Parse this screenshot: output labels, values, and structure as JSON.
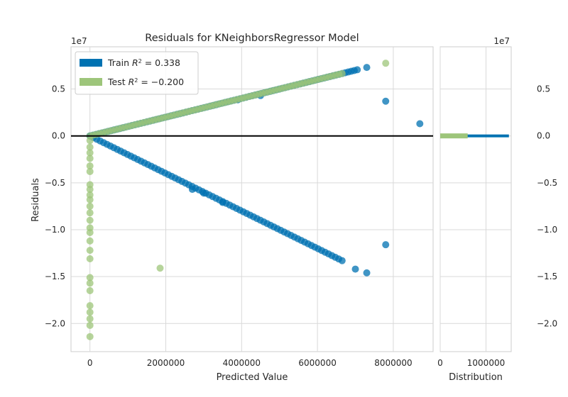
{
  "chart_data": {
    "type": "scatter",
    "title": "Residuals for KNeighborsRegressor Model",
    "xlabel": "Predicted Value",
    "ylabel": "Residuals",
    "x_ticks": [
      0,
      2000000,
      4000000,
      6000000,
      8000000
    ],
    "x_tick_labels": [
      "0",
      "2000000",
      "4000000",
      "6000000",
      "8000000"
    ],
    "y_ticks": [
      5000000,
      0,
      -5000000,
      -10000000,
      -15000000,
      -20000000
    ],
    "y_tick_labels": [
      "0.5",
      "0.0",
      "−0.5",
      "−1.0",
      "−1.5",
      "−2.0"
    ],
    "y_offset_label": "1e7",
    "xlim": [
      -500000,
      9050000
    ],
    "ylim": [
      -23000000,
      9500000
    ],
    "grid": true,
    "legend_position": "top-left",
    "zero_line": true,
    "series": [
      {
        "name": "Train R^2 = 0.338",
        "legend_prefix": "Train ",
        "legend_value": " = 0.338",
        "color": "#0072b2",
        "segments": [
          {
            "x_start": 0,
            "x_end": 7050000,
            "slope": 1.0,
            "count": 90
          },
          {
            "x_start": 0,
            "x_end": 6650000,
            "slope": -2.0,
            "count": 75
          }
        ],
        "points": [
          [
            3900000,
            3850000
          ],
          [
            4500000,
            4300000
          ],
          [
            7300000,
            7300000
          ],
          [
            7800000,
            3700000
          ],
          [
            8700000,
            1300000
          ],
          [
            3500000,
            -7100000
          ],
          [
            7000000,
            -14200000
          ],
          [
            7300000,
            -14600000
          ],
          [
            7800000,
            -11600000
          ],
          [
            3000000,
            -6100000
          ],
          [
            2700000,
            -5700000
          ]
        ]
      },
      {
        "name": "Test R^2 = −0.200",
        "legend_prefix": "Test ",
        "legend_value": " = −0.200",
        "color": "#9dc57a",
        "segments": [
          {
            "x_start": 0,
            "x_end": 6650000,
            "slope": 1.0,
            "count": 80
          }
        ],
        "points": [
          [
            0,
            -500000
          ],
          [
            0,
            -1200000
          ],
          [
            0,
            -1800000
          ],
          [
            0,
            -2400000
          ],
          [
            0,
            -3200000
          ],
          [
            0,
            -3800000
          ],
          [
            0,
            -5200000
          ],
          [
            0,
            -5700000
          ],
          [
            0,
            -6300000
          ],
          [
            0,
            -6800000
          ],
          [
            0,
            -7500000
          ],
          [
            0,
            -8200000
          ],
          [
            0,
            -9000000
          ],
          [
            0,
            -9800000
          ],
          [
            0,
            -10300000
          ],
          [
            0,
            -11200000
          ],
          [
            0,
            -12200000
          ],
          [
            0,
            -13100000
          ],
          [
            0,
            -15100000
          ],
          [
            0,
            -15700000
          ],
          [
            0,
            -16500000
          ],
          [
            0,
            -18100000
          ],
          [
            0,
            -18800000
          ],
          [
            0,
            -19500000
          ],
          [
            0,
            -20200000
          ],
          [
            0,
            -21400000
          ],
          [
            1850000,
            -14100000
          ],
          [
            7800000,
            7750000
          ]
        ]
      }
    ],
    "distribution": {
      "xlabel": "Distribution",
      "x_ticks": [
        0,
        1000000
      ],
      "x_tick_labels": [
        "0",
        "1000000"
      ],
      "xlim": [
        0,
        1550000
      ],
      "right_tick_labels": [
        "0.5",
        "0.0",
        "−0.5",
        "−1.0",
        "−1.5",
        "−2.0"
      ],
      "offset_label": "1e7",
      "bars": [
        {
          "series": "Train",
          "value": 1500000
        },
        {
          "series": "Test",
          "value": 600000
        }
      ]
    }
  }
}
